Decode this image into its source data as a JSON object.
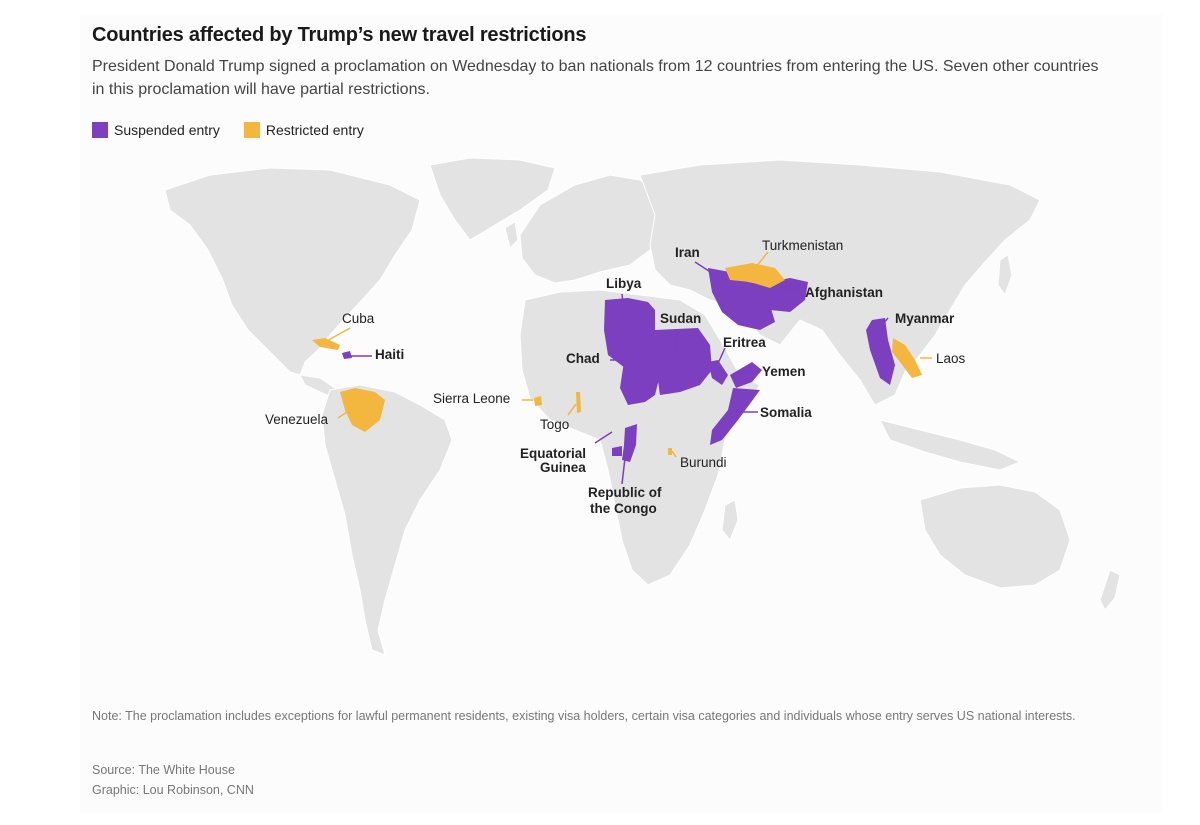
{
  "header": {
    "title": "Countries affected by Trump’s new travel restrictions",
    "subtitle": "President Donald Trump signed a proclamation on Wednesday to ban nationals from 12 countries from entering the US. Seven other countries in this proclamation will have partial restrictions."
  },
  "legend": {
    "suspended_label": "Suspended entry",
    "restricted_label": "Restricted entry"
  },
  "colors": {
    "suspended": "#7b3fbf",
    "restricted": "#f3b63f",
    "land": "#e3e3e3",
    "background": "#fcfcfc"
  },
  "map_labels": {
    "iran": "Iran",
    "turkmenistan": "Turkmenistan",
    "afghanistan": "Afghanistan",
    "libya": "Libya",
    "sudan": "Sudan",
    "chad": "Chad",
    "eritrea": "Eritrea",
    "yemen": "Yemen",
    "somalia": "Somalia",
    "myanmar": "Myanmar",
    "laos": "Laos",
    "cuba": "Cuba",
    "haiti": "Haiti",
    "venezuela": "Venezuela",
    "sierra_leone": "Sierra Leone",
    "togo": "Togo",
    "equatorial_guinea_1": "Equatorial",
    "equatorial_guinea_2": "Guinea",
    "burundi": "Burundi",
    "congo_1": "Republic of",
    "congo_2": "the Congo"
  },
  "footer": {
    "note": "Note: The proclamation includes exceptions for lawful permanent residents, existing visa holders, certain visa categories and individuals whose entry serves US national interests.",
    "source": "Source: The White House",
    "graphic": "Graphic: Lou Robinson, CNN"
  }
}
